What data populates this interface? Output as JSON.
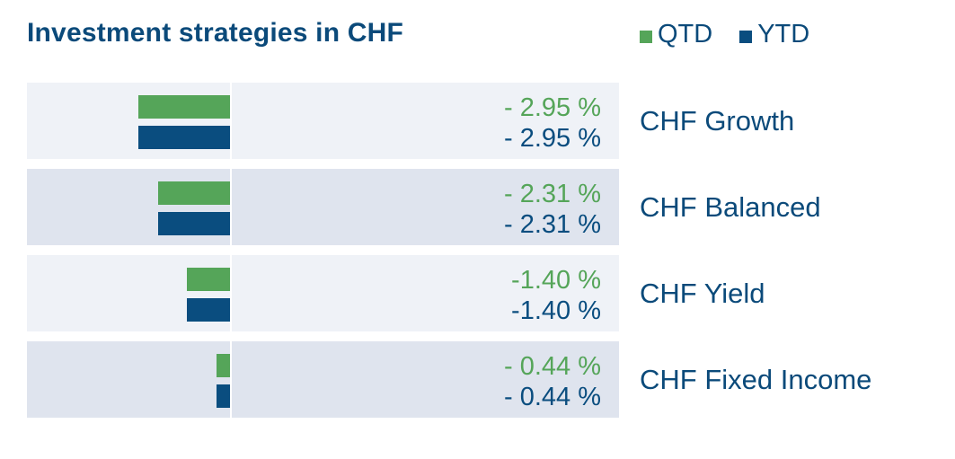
{
  "title": "Investment strategies in CHF",
  "colors": {
    "qtd": "#55a559",
    "ytd": "#0a4d7f",
    "row_light": "#eff2f7",
    "row_dark": "#dfe4ee",
    "text": "#0b4a7a"
  },
  "legend": [
    {
      "label": "QTD",
      "color": "#55a559"
    },
    {
      "label": "YTD",
      "color": "#0a4d7f"
    }
  ],
  "chart_data": {
    "type": "bar",
    "orientation": "horizontal",
    "title": "Investment strategies in CHF",
    "categories": [
      "CHF Growth",
      "CHF Balanced",
      "CHF Yield",
      "CHF Fixed Income"
    ],
    "series": [
      {
        "name": "QTD",
        "values": [
          -2.95,
          -2.31,
          -1.4,
          -0.44
        ],
        "labels": [
          "- 2.95 %",
          "- 2.31 %",
          "-1.40 %",
          "- 0.44 %"
        ]
      },
      {
        "name": "YTD",
        "values": [
          -2.95,
          -2.31,
          -1.4,
          -0.44
        ],
        "labels": [
          "- 2.95 %",
          "- 2.31 %",
          "-1.40 %",
          "- 0.44 %"
        ]
      }
    ],
    "xlim": [
      -6.5,
      0
    ],
    "legend_position": "top-right",
    "grid": false
  }
}
